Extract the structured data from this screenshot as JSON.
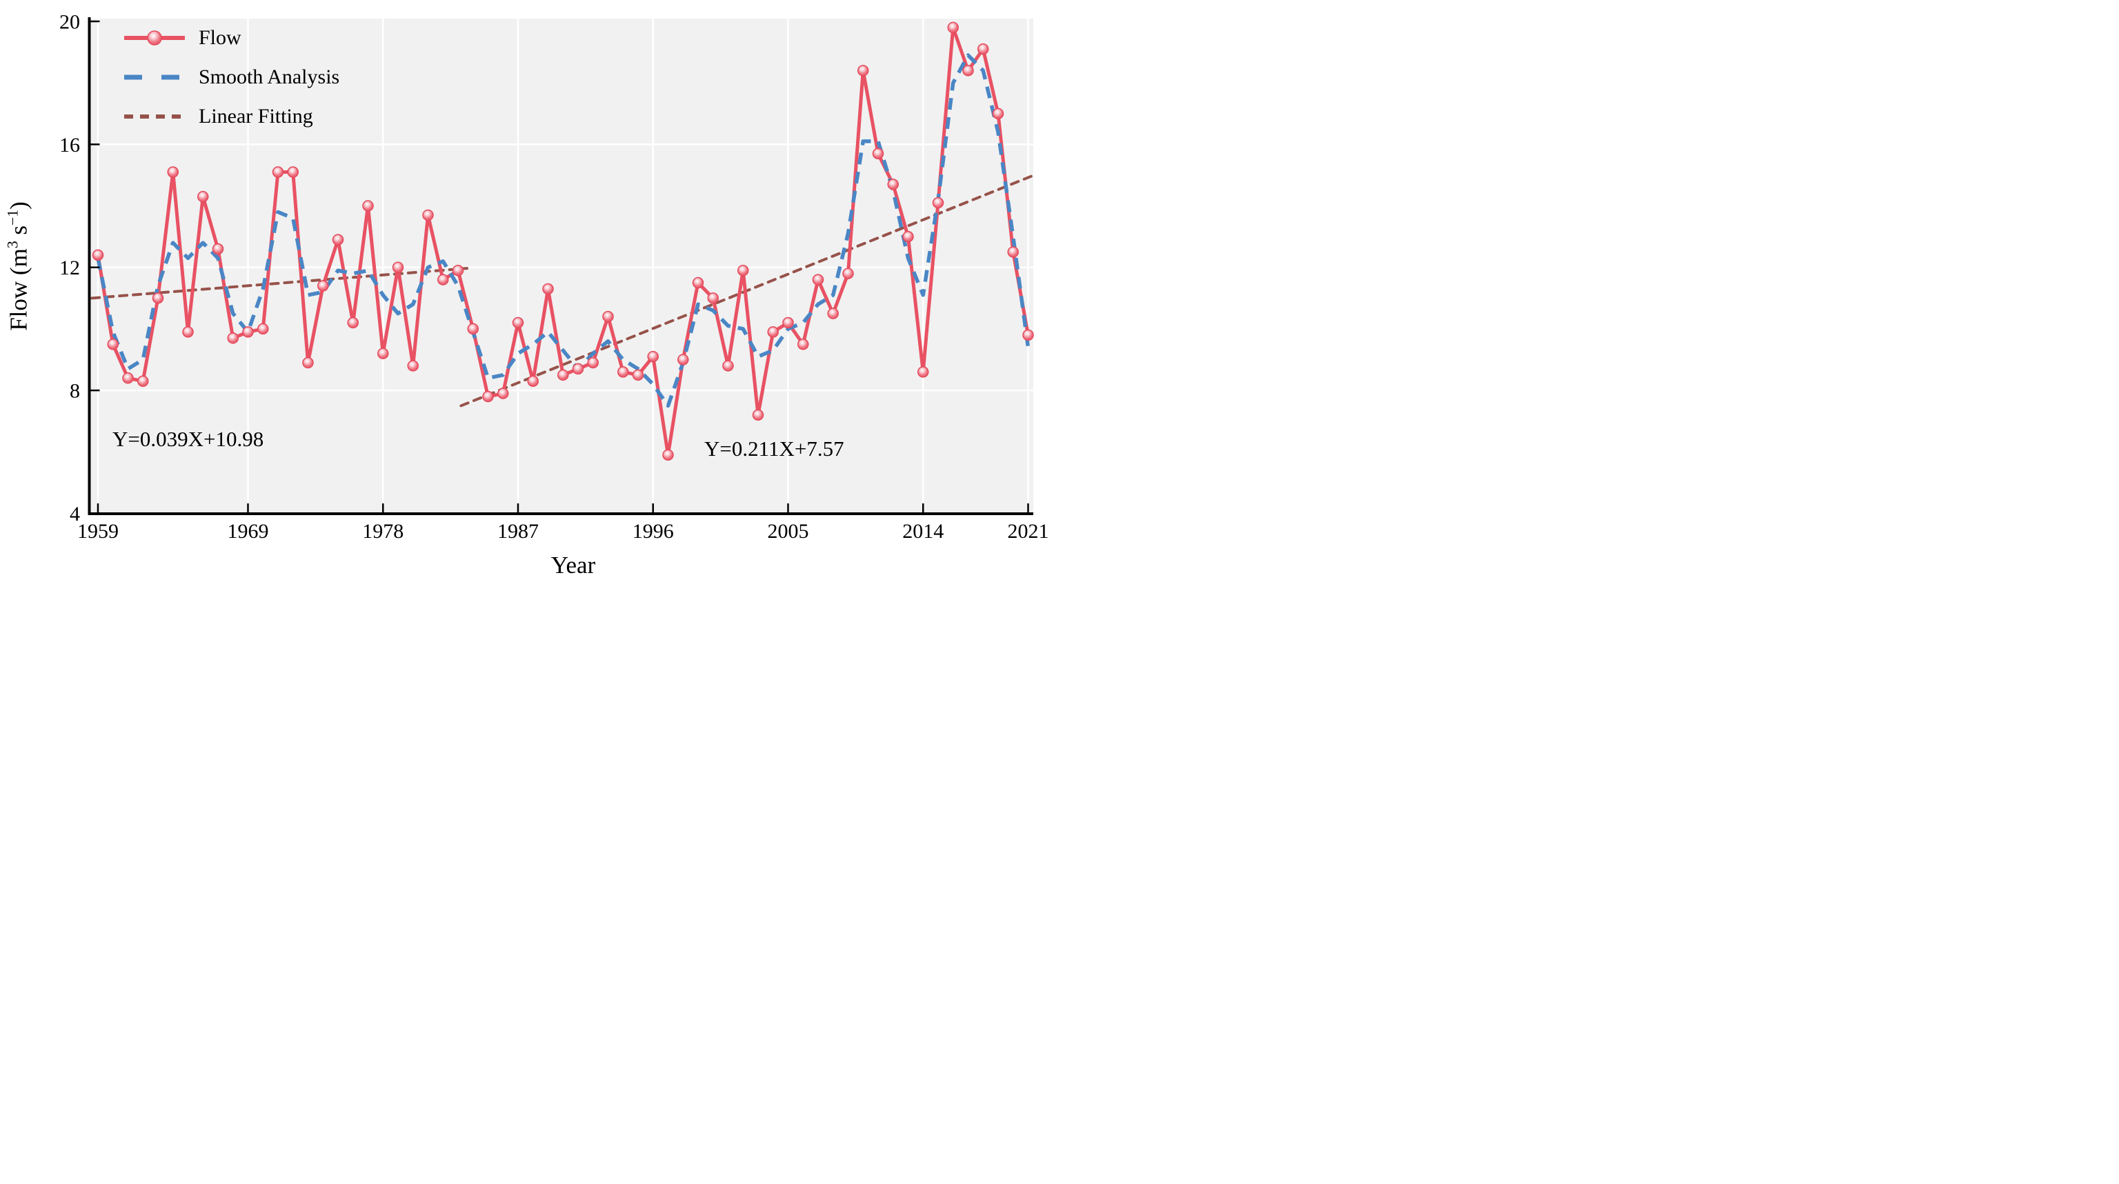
{
  "figure": {
    "xlabel": "Year",
    "ylabel_text": "Flow (m3 s-1)",
    "ylabel_parts": {
      "prefix": "Flow (m",
      "sup1": "3",
      "mid": " s",
      "sup2": "−1",
      "suffix": ")"
    },
    "legend": {
      "flow_label": "Flow",
      "smooth_label": "Smooth Analysis",
      "linear_label": "Linear Fitting"
    },
    "annotations": {
      "eq_left": "Y=0.039X+10.98",
      "eq_right": "Y=0.211X+7.57"
    },
    "colors": {
      "flow": "#e85263",
      "flow_marker_edge": "#e4495b",
      "smooth": "#4a86c5",
      "linear": "#96524a",
      "plot_background": "#f1f1f1",
      "gridline": "#ffffff",
      "axis": "#000000"
    }
  },
  "chart_data": {
    "type": "line",
    "title": "",
    "xlabel": "Year",
    "ylabel": "Flow (m3 s-1)",
    "xlim": [
      1958.6,
      2021.4
    ],
    "ylim": [
      4,
      20
    ],
    "x_ticks": [
      1959,
      1969,
      1978,
      1987,
      1996,
      2005,
      2014,
      2021
    ],
    "y_ticks": [
      4,
      8,
      12,
      16,
      20
    ],
    "grid": true,
    "legend_position": "top-left",
    "x": [
      1959,
      1960,
      1961,
      1962,
      1963,
      1964,
      1965,
      1966,
      1967,
      1968,
      1969,
      1970,
      1971,
      1972,
      1973,
      1974,
      1975,
      1976,
      1977,
      1978,
      1979,
      1980,
      1981,
      1982,
      1983,
      1984,
      1985,
      1986,
      1987,
      1988,
      1989,
      1990,
      1991,
      1992,
      1993,
      1994,
      1995,
      1996,
      1997,
      1998,
      1999,
      2000,
      2001,
      2002,
      2003,
      2004,
      2005,
      2006,
      2007,
      2008,
      2009,
      2010,
      2011,
      2012,
      2013,
      2014,
      2015,
      2016,
      2017,
      2018,
      2019,
      2020,
      2021
    ],
    "series": [
      {
        "name": "Flow",
        "style": "solid-line-with-markers",
        "color": "#e85263",
        "values": [
          12.4,
          9.5,
          8.4,
          8.3,
          11.0,
          15.1,
          9.9,
          14.3,
          12.6,
          9.7,
          9.9,
          10.0,
          15.1,
          15.1,
          8.9,
          11.4,
          12.9,
          10.2,
          14.0,
          9.2,
          12.0,
          8.8,
          13.7,
          11.6,
          11.9,
          10.0,
          7.8,
          7.9,
          10.2,
          8.3,
          11.3,
          8.5,
          8.7,
          8.9,
          10.4,
          8.6,
          8.5,
          9.1,
          5.9,
          9.0,
          11.5,
          11.0,
          8.8,
          11.9,
          7.2,
          9.9,
          10.2,
          9.5,
          11.6,
          10.5,
          11.8,
          18.4,
          15.7,
          14.7,
          13.0,
          8.6,
          14.1,
          19.8,
          18.4,
          19.1,
          17.0,
          12.5,
          9.8
        ]
      },
      {
        "name": "Smooth Analysis",
        "style": "dashed-line",
        "color": "#4a86c5",
        "values": [
          12.3,
          9.9,
          8.7,
          9.0,
          11.4,
          12.8,
          12.3,
          12.8,
          12.3,
          10.5,
          9.9,
          11.3,
          13.8,
          13.6,
          11.1,
          11.2,
          11.9,
          11.8,
          11.9,
          11.1,
          10.5,
          10.8,
          12.0,
          12.2,
          11.4,
          9.9,
          8.4,
          8.5,
          9.2,
          9.5,
          9.9,
          9.3,
          8.7,
          9.2,
          9.6,
          9.0,
          8.7,
          8.2,
          7.5,
          8.9,
          10.8,
          10.6,
          10.1,
          10.0,
          9.1,
          9.3,
          10.0,
          10.2,
          10.8,
          11.1,
          13.1,
          16.1,
          16.1,
          14.5,
          12.3,
          11.1,
          14.2,
          18.0,
          18.9,
          18.4,
          16.4,
          13.0,
          9.4
        ]
      },
      {
        "name": "Linear Fitting",
        "style": "dotted-line",
        "color": "#96524a",
        "segments": [
          {
            "equation": "Y=0.039X+10.98",
            "x": [
              1958.6,
              1983.6
            ],
            "y": [
              11.0,
              11.97
            ]
          },
          {
            "equation": "Y=0.211X+7.57",
            "x": [
              1983.2,
              2021.4
            ],
            "y": [
              7.5,
              15.0
            ]
          }
        ]
      }
    ],
    "annotations": [
      {
        "text": "Y=0.039X+10.98",
        "x_year": 1960.5,
        "y_value": 6.2
      },
      {
        "text": "Y=0.211X+7.57",
        "x_year": 1999.5,
        "y_value": 5.9
      }
    ]
  }
}
